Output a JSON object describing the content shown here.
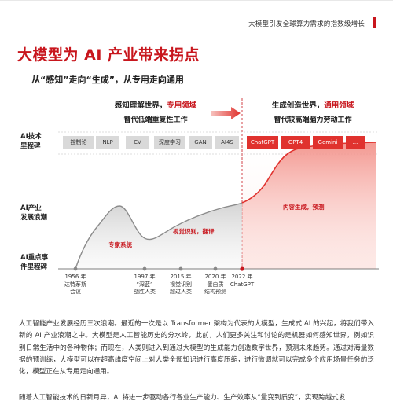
{
  "header": {
    "running_title": "大模型引发全球算力需求的指数级增长"
  },
  "title": "大模型为 AI 产业带来拐点",
  "subtitle": "从“感知”走向“生成”，从专用走向通用",
  "phase_left": {
    "head_prefix": "感知理解世界，",
    "head_highlight": "专用领域",
    "sub": "替代低端重复性工作"
  },
  "phase_right": {
    "head_prefix": "生成创造世界，",
    "head_highlight": "通用领域",
    "sub": "替代较高端脑力劳动工作"
  },
  "axis_labels": {
    "milestones": "AI技术\n里程碑",
    "trend": "AI产业\n发展浪潮",
    "events": "AI重点事\n件里程碑"
  },
  "milestone_chips_left": [
    "控制论",
    "NLP",
    "CV",
    "深度学习",
    "GAN",
    "AI4S"
  ],
  "milestone_chips_right": [
    "ChatGPT",
    "GPT4",
    "Gemini",
    "..."
  ],
  "curve_notes": {
    "expert": "专家系统",
    "vision": "视觉识别，翻译",
    "content": "内容生成，预测"
  },
  "timeline": [
    {
      "year": "1956 年",
      "desc": "达特茅斯\n会议"
    },
    {
      "year": "1997 年",
      "desc": "“深蓝”\n战胜人类"
    },
    {
      "year": "2015 年",
      "desc": "视觉识别\n超过人类"
    },
    {
      "year": "2020 年",
      "desc": "蛋白质\n结构预测"
    },
    {
      "year": "2022 年",
      "desc": "ChatGPT"
    }
  ],
  "paragraph_1": "人工智能产业发展经历三次浪潮。最近的一次是以 Transformer 架构为代表的大模型，生成式 AI 的兴起，将我们带入新的 AI 产业浪潮之中。大模型是人工智能历史的分水岭，此前，人们更多关注和讨论的是机器如何感知世界，例如识别日常生活中的各种物体；而现在，人类则进入到通过大模型的生成能力创造数字世界，预测未来趋势。通过对海量数据的预训练，大模型可以在超高维度空间上对人类全部知识进行高度压缩，进行微调就可以完成多个应用场景任务的泛化，模型正在从专用走向通用。",
  "paragraph_2": "随着人工智能技术的日新月异，AI 将进一步驱动各行各业生产能力、生产效率从“量变到质变”，实现跨越式发",
  "colors": {
    "brand_red": "#c8161d",
    "chip_gray": "#d9d9d9",
    "chip_red": "#e0322e",
    "curve_gray": "#9a9a9a"
  }
}
